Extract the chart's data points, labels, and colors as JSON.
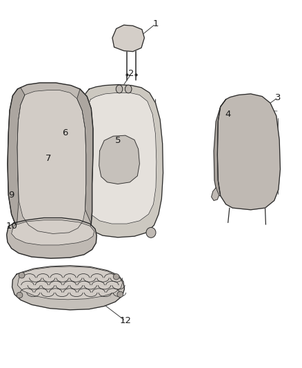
{
  "background_color": "#ffffff",
  "fig_width": 4.38,
  "fig_height": 5.33,
  "dpi": 100,
  "line_color": "#2a2a2a",
  "fill_light": "#d4cec8",
  "fill_mid": "#bfb9b3",
  "fill_dark": "#a8a29c",
  "fill_frame": "#c0bab4",
  "text_color": "#1a1a1a",
  "label_fontsize": 9.5,
  "labels_data": [
    [
      1,
      0.515,
      0.935,
      0.455,
      0.895
    ],
    [
      2,
      0.435,
      0.8,
      0.4,
      0.758
    ],
    [
      3,
      0.92,
      0.735,
      0.87,
      0.705
    ],
    [
      4,
      0.755,
      0.69,
      0.72,
      0.66
    ],
    [
      5,
      0.39,
      0.618,
      0.365,
      0.59
    ],
    [
      6,
      0.215,
      0.638,
      0.185,
      0.61
    ],
    [
      7,
      0.16,
      0.57,
      0.135,
      0.545
    ],
    [
      9,
      0.038,
      0.47,
      0.065,
      0.448
    ],
    [
      10,
      0.038,
      0.385,
      0.062,
      0.366
    ],
    [
      12,
      0.415,
      0.128,
      0.34,
      0.175
    ]
  ]
}
